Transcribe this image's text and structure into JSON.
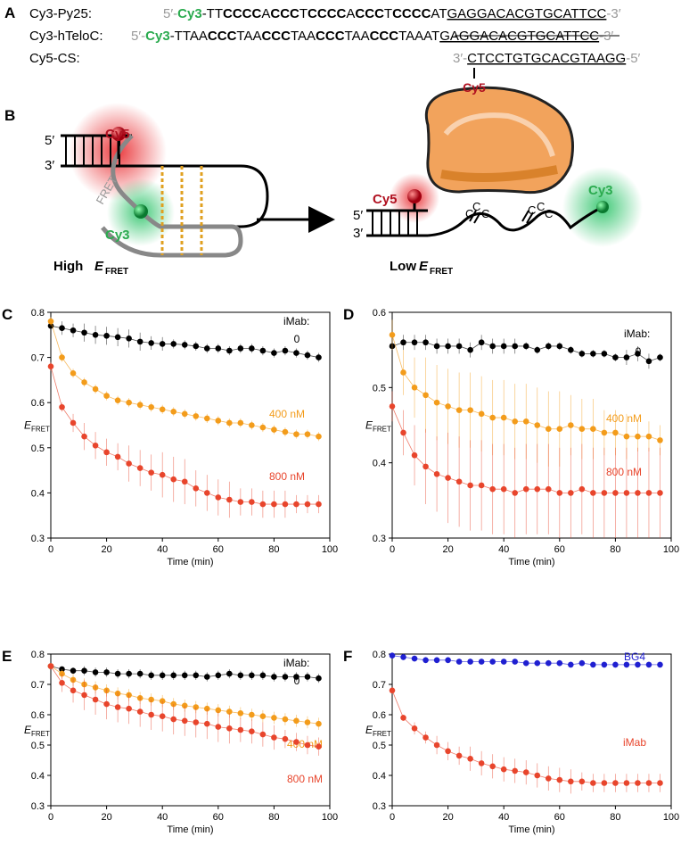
{
  "sequences": {
    "panel": "A",
    "rows": [
      {
        "label": "Cy3-Py25:",
        "parts": [
          {
            "text": "5′-",
            "style": "gray"
          },
          {
            "text": "Cy3",
            "style": "green"
          },
          {
            "text": "-TT",
            "style": "plain"
          },
          {
            "text": "CCCC",
            "style": "bold"
          },
          {
            "text": "A",
            "style": "plain"
          },
          {
            "text": "CCC",
            "style": "bold"
          },
          {
            "text": "T",
            "style": "plain"
          },
          {
            "text": "CCCC",
            "style": "bold"
          },
          {
            "text": "A",
            "style": "plain"
          },
          {
            "text": "CCC",
            "style": "bold"
          },
          {
            "text": "T",
            "style": "plain"
          },
          {
            "text": "CCCC",
            "style": "bold"
          },
          {
            "text": "AT",
            "style": "plain"
          },
          {
            "text": "GAGGACACGTGCATTCC",
            "style": "under"
          },
          {
            "text": "-3′",
            "style": "gray"
          }
        ]
      },
      {
        "label": "Cy3-hTeloC:",
        "parts": [
          {
            "text": "5′-",
            "style": "gray"
          },
          {
            "text": "Cy3",
            "style": "green"
          },
          {
            "text": "-TTAA",
            "style": "plain"
          },
          {
            "text": "CCC",
            "style": "bold"
          },
          {
            "text": "TAA",
            "style": "plain"
          },
          {
            "text": "CCC",
            "style": "bold"
          },
          {
            "text": "TAA",
            "style": "plain"
          },
          {
            "text": "CCC",
            "style": "bold"
          },
          {
            "text": "TAA",
            "style": "plain"
          },
          {
            "text": "CCC",
            "style": "bold"
          },
          {
            "text": "TAAAT",
            "style": "plain"
          },
          {
            "text": "GAGGACACGTGCATTCC",
            "style": "under"
          },
          {
            "text": "-3′",
            "style": "gray"
          }
        ]
      },
      {
        "label": "Cy5-CS:",
        "parts": [
          {
            "text": "3′-",
            "style": "gray"
          },
          {
            "text": "CTCCTGTGCACGTAAGG",
            "style": "under"
          },
          {
            "text": "-5′",
            "style": "gray"
          }
        ]
      }
    ],
    "cy5_label": "Cy5"
  },
  "diagram": {
    "panel": "B",
    "labels": [
      "Cy5",
      "5′",
      "3′",
      "FRET",
      "Cy3",
      "High",
      "E",
      "FRET",
      "Cy5",
      "5′",
      "3′",
      "C",
      "C",
      "C",
      "C",
      "C",
      "C",
      "Cy3",
      "Low",
      "E",
      "FRET"
    ]
  },
  "chart_data": [
    {
      "type": "scatter",
      "panel": "C",
      "xlabel": "Time (min)",
      "ylabel": "E",
      "ylabel_sub": "FRET",
      "legend_title": "iMab:",
      "x": [
        0,
        4,
        8,
        12,
        16,
        20,
        24,
        28,
        32,
        36,
        40,
        44,
        48,
        52,
        56,
        60,
        64,
        68,
        72,
        76,
        80,
        84,
        88,
        92,
        96
      ],
      "xlim": [
        0,
        100
      ],
      "xticks": [
        0,
        20,
        40,
        60,
        80,
        100
      ],
      "ylim": [
        0.3,
        0.8
      ],
      "yticks": [
        0.3,
        0.4,
        0.5,
        0.6,
        0.7,
        0.8
      ],
      "series": [
        {
          "name": "0",
          "color": "#000000",
          "values": [
            0.77,
            0.765,
            0.76,
            0.755,
            0.75,
            0.748,
            0.745,
            0.742,
            0.735,
            0.732,
            0.73,
            0.73,
            0.728,
            0.725,
            0.72,
            0.72,
            0.715,
            0.72,
            0.72,
            0.715,
            0.71,
            0.715,
            0.71,
            0.705,
            0.7
          ],
          "errors": [
            0.02,
            0.015,
            0.015,
            0.02,
            0.02,
            0.02,
            0.02,
            0.02,
            0.02,
            0.015,
            0.015,
            0.01,
            0.01,
            0.01,
            0.01,
            0.01,
            0.01,
            0.01,
            0.01,
            0.01,
            0.01,
            0.01,
            0.01,
            0.01,
            0.01
          ]
        },
        {
          "name": "400 nM",
          "color": "#f39c1b",
          "values": [
            0.78,
            0.7,
            0.665,
            0.645,
            0.63,
            0.615,
            0.605,
            0.6,
            0.595,
            0.59,
            0.585,
            0.58,
            0.575,
            0.57,
            0.565,
            0.56,
            0.555,
            0.555,
            0.55,
            0.545,
            0.54,
            0.535,
            0.53,
            0.53,
            0.525
          ],
          "errors": [
            0.01,
            0.01,
            0.01,
            0.01,
            0.01,
            0.01,
            0.01,
            0.01,
            0.01,
            0.01,
            0.01,
            0.01,
            0.01,
            0.01,
            0.01,
            0.01,
            0.01,
            0.01,
            0.01,
            0.01,
            0.01,
            0.01,
            0.01,
            0.01,
            0.01
          ]
        },
        {
          "name": "800 nM",
          "color": "#e8452c",
          "values": [
            0.68,
            0.59,
            0.555,
            0.525,
            0.505,
            0.49,
            0.48,
            0.465,
            0.455,
            0.445,
            0.44,
            0.43,
            0.425,
            0.41,
            0.4,
            0.39,
            0.385,
            0.38,
            0.38,
            0.375,
            0.375,
            0.375,
            0.375,
            0.375,
            0.375
          ],
          "errors": [
            0.01,
            0.01,
            0.02,
            0.03,
            0.03,
            0.03,
            0.03,
            0.04,
            0.04,
            0.04,
            0.05,
            0.05,
            0.05,
            0.04,
            0.04,
            0.04,
            0.04,
            0.03,
            0.03,
            0.03,
            0.03,
            0.03,
            0.02,
            0.02,
            0.02
          ]
        }
      ]
    },
    {
      "type": "scatter",
      "panel": "D",
      "xlabel": "Time (min)",
      "ylabel": "E",
      "ylabel_sub": "FRET",
      "legend_title": "iMab:",
      "x": [
        0,
        4,
        8,
        12,
        16,
        20,
        24,
        28,
        32,
        36,
        40,
        44,
        48,
        52,
        56,
        60,
        64,
        68,
        72,
        76,
        80,
        84,
        88,
        92,
        96
      ],
      "xlim": [
        0,
        100
      ],
      "xticks": [
        0,
        20,
        40,
        60,
        80,
        100
      ],
      "ylim": [
        0.3,
        0.6
      ],
      "yticks": [
        0.3,
        0.4,
        0.5,
        0.6
      ],
      "series": [
        {
          "name": "0",
          "color": "#000000",
          "values": [
            0.555,
            0.56,
            0.56,
            0.56,
            0.555,
            0.555,
            0.555,
            0.55,
            0.56,
            0.555,
            0.555,
            0.555,
            0.555,
            0.55,
            0.555,
            0.555,
            0.55,
            0.545,
            0.545,
            0.545,
            0.54,
            0.54,
            0.545,
            0.535,
            0.54
          ],
          "errors": [
            0.01,
            0.01,
            0.01,
            0.01,
            0.01,
            0.01,
            0.01,
            0.01,
            0.01,
            0.01,
            0.01,
            0.01,
            0.005,
            0.005,
            0.005,
            0.005,
            0.005,
            0.005,
            0.005,
            0.005,
            0.005,
            0.01,
            0.01,
            0.01,
            0.005
          ]
        },
        {
          "name": "400 nM",
          "color": "#f39c1b",
          "values": [
            0.57,
            0.52,
            0.5,
            0.49,
            0.48,
            0.475,
            0.47,
            0.47,
            0.465,
            0.46,
            0.46,
            0.455,
            0.455,
            0.45,
            0.445,
            0.445,
            0.45,
            0.445,
            0.445,
            0.44,
            0.44,
            0.435,
            0.435,
            0.435,
            0.43
          ],
          "errors": [
            0.02,
            0.03,
            0.04,
            0.05,
            0.05,
            0.05,
            0.05,
            0.05,
            0.05,
            0.05,
            0.05,
            0.05,
            0.05,
            0.05,
            0.05,
            0.05,
            0.04,
            0.04,
            0.04,
            0.03,
            0.03,
            0.03,
            0.02,
            0.02,
            0.02
          ]
        },
        {
          "name": "800 nM",
          "color": "#e8452c",
          "values": [
            0.475,
            0.44,
            0.41,
            0.395,
            0.385,
            0.38,
            0.375,
            0.37,
            0.37,
            0.365,
            0.365,
            0.36,
            0.365,
            0.365,
            0.365,
            0.36,
            0.36,
            0.365,
            0.36,
            0.36,
            0.36,
            0.36,
            0.36,
            0.36,
            0.36
          ],
          "errors": [
            0.02,
            0.03,
            0.04,
            0.05,
            0.05,
            0.06,
            0.06,
            0.06,
            0.06,
            0.06,
            0.06,
            0.06,
            0.06,
            0.06,
            0.06,
            0.06,
            0.06,
            0.06,
            0.06,
            0.06,
            0.06,
            0.06,
            0.06,
            0.06,
            0.06
          ]
        }
      ]
    },
    {
      "type": "scatter",
      "panel": "E",
      "xlabel": "Time (min)",
      "ylabel": "E",
      "ylabel_sub": "FRET",
      "legend_title": "iMab:",
      "x": [
        0,
        4,
        8,
        12,
        16,
        20,
        24,
        28,
        32,
        36,
        40,
        44,
        48,
        52,
        56,
        60,
        64,
        68,
        72,
        76,
        80,
        84,
        88,
        92,
        96
      ],
      "xlim": [
        0,
        100
      ],
      "xticks": [
        0,
        20,
        40,
        60,
        80,
        100
      ],
      "ylim": [
        0.3,
        0.8
      ],
      "yticks": [
        0.3,
        0.4,
        0.5,
        0.6,
        0.7,
        0.8
      ],
      "series": [
        {
          "name": "0",
          "color": "#000000",
          "values": [
            0.76,
            0.75,
            0.745,
            0.745,
            0.74,
            0.74,
            0.735,
            0.735,
            0.735,
            0.73,
            0.73,
            0.73,
            0.73,
            0.73,
            0.725,
            0.73,
            0.735,
            0.73,
            0.73,
            0.73,
            0.725,
            0.725,
            0.725,
            0.725,
            0.72
          ],
          "errors": [
            0.01,
            0.01,
            0.01,
            0.015,
            0.015,
            0.015,
            0.015,
            0.015,
            0.015,
            0.015,
            0.015,
            0.015,
            0.015,
            0.015,
            0.015,
            0.015,
            0.015,
            0.015,
            0.015,
            0.015,
            0.015,
            0.015,
            0.015,
            0.015,
            0.015
          ]
        },
        {
          "name": "400 nM",
          "color": "#f39c1b",
          "values": [
            0.76,
            0.735,
            0.715,
            0.7,
            0.69,
            0.68,
            0.67,
            0.665,
            0.655,
            0.65,
            0.645,
            0.635,
            0.63,
            0.625,
            0.62,
            0.615,
            0.61,
            0.605,
            0.6,
            0.595,
            0.59,
            0.585,
            0.58,
            0.575,
            0.57
          ],
          "errors": [
            0.01,
            0.015,
            0.02,
            0.02,
            0.02,
            0.02,
            0.02,
            0.02,
            0.02,
            0.02,
            0.02,
            0.02,
            0.02,
            0.02,
            0.02,
            0.02,
            0.02,
            0.02,
            0.02,
            0.02,
            0.02,
            0.02,
            0.02,
            0.02,
            0.02
          ]
        },
        {
          "name": "800 nM",
          "color": "#e8452c",
          "values": [
            0.76,
            0.705,
            0.68,
            0.665,
            0.65,
            0.635,
            0.625,
            0.62,
            0.61,
            0.6,
            0.595,
            0.585,
            0.58,
            0.575,
            0.57,
            0.56,
            0.555,
            0.55,
            0.545,
            0.535,
            0.525,
            0.52,
            0.51,
            0.5,
            0.495
          ],
          "errors": [
            0.01,
            0.03,
            0.04,
            0.05,
            0.05,
            0.05,
            0.05,
            0.05,
            0.05,
            0.05,
            0.05,
            0.05,
            0.05,
            0.05,
            0.05,
            0.05,
            0.05,
            0.04,
            0.04,
            0.04,
            0.04,
            0.03,
            0.03,
            0.03,
            0.03
          ]
        }
      ]
    },
    {
      "type": "scatter",
      "panel": "F",
      "xlabel": "Time (min)",
      "ylabel": "E",
      "ylabel_sub": "FRET",
      "x": [
        0,
        4,
        8,
        12,
        16,
        20,
        24,
        28,
        32,
        36,
        40,
        44,
        48,
        52,
        56,
        60,
        64,
        68,
        72,
        76,
        80,
        84,
        88,
        92,
        96
      ],
      "xlim": [
        0,
        100
      ],
      "xticks": [
        0,
        20,
        40,
        60,
        80,
        100
      ],
      "ylim": [
        0.3,
        0.8
      ],
      "yticks": [
        0.3,
        0.4,
        0.5,
        0.6,
        0.7,
        0.8
      ],
      "series": [
        {
          "name": "BG4",
          "color": "#1f1fd1",
          "values": [
            0.795,
            0.79,
            0.785,
            0.78,
            0.78,
            0.78,
            0.775,
            0.775,
            0.775,
            0.775,
            0.775,
            0.775,
            0.77,
            0.77,
            0.77,
            0.77,
            0.765,
            0.77,
            0.765,
            0.765,
            0.765,
            0.765,
            0.765,
            0.765,
            0.765
          ],
          "errors": [
            0.01,
            0.01,
            0.01,
            0.01,
            0.01,
            0.01,
            0.01,
            0.01,
            0.01,
            0.01,
            0.01,
            0.01,
            0.01,
            0.01,
            0.01,
            0.01,
            0.01,
            0.01,
            0.01,
            0.01,
            0.01,
            0.01,
            0.01,
            0.01,
            0.01
          ]
        },
        {
          "name": "iMab",
          "color": "#e8452c",
          "values": [
            0.68,
            0.59,
            0.555,
            0.525,
            0.5,
            0.48,
            0.465,
            0.455,
            0.44,
            0.43,
            0.42,
            0.415,
            0.41,
            0.4,
            0.39,
            0.385,
            0.38,
            0.38,
            0.375,
            0.375,
            0.375,
            0.375,
            0.375,
            0.375,
            0.375
          ],
          "errors": [
            0.01,
            0.01,
            0.02,
            0.02,
            0.03,
            0.03,
            0.03,
            0.04,
            0.04,
            0.04,
            0.04,
            0.04,
            0.04,
            0.04,
            0.04,
            0.04,
            0.04,
            0.03,
            0.03,
            0.03,
            0.03,
            0.03,
            0.03,
            0.03,
            0.03
          ]
        }
      ]
    }
  ]
}
